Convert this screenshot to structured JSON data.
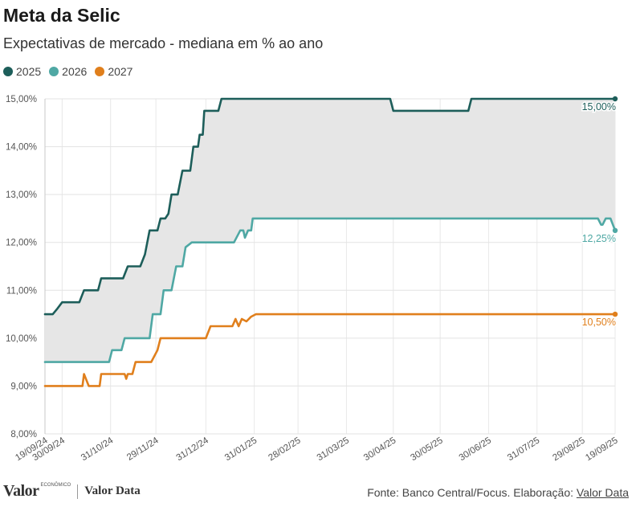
{
  "header": {
    "title": "Meta da Selic",
    "subtitle": "Expectativas de mercado - mediana em % ao ano"
  },
  "footer": {
    "logo_main": "Valor",
    "logo_small": "ECONÔMICO",
    "logo_brand": "Valor Data",
    "source_prefix": "Fonte: Banco Central/Focus. Elaboração: ",
    "source_link": "Valor Data"
  },
  "chart_data": {
    "type": "line",
    "title": "Meta da Selic",
    "subtitle": "Expectativas de mercado - mediana em % ao ano",
    "xlabel": "",
    "ylabel": "",
    "ylim": [
      8.0,
      15.0
    ],
    "yticks": [
      8.0,
      9.0,
      10.0,
      11.0,
      12.0,
      13.0,
      14.0,
      15.0
    ],
    "ytick_labels": [
      "8,00%",
      "9,00%",
      "10,00%",
      "11,00%",
      "12,00%",
      "13,00%",
      "14,00%",
      "15,00%"
    ],
    "xlim": [
      "2024-09-19",
      "2025-09-19"
    ],
    "xticks": [
      "2024-09-19",
      "2024-09-30",
      "2024-10-31",
      "2024-11-29",
      "2024-12-31",
      "2025-01-31",
      "2025-02-28",
      "2025-03-31",
      "2025-04-30",
      "2025-05-30",
      "2025-06-30",
      "2025-07-31",
      "2025-08-29",
      "2025-09-19"
    ],
    "xtick_labels": [
      "19/09/24",
      "30/09/24",
      "31/10/24",
      "29/11/24",
      "31/12/24",
      "31/01/25",
      "28/02/25",
      "31/03/25",
      "30/04/25",
      "30/05/25",
      "30/06/25",
      "31/07/25",
      "29/08/25",
      "19/09/25"
    ],
    "grid": true,
    "legend_position": "top-left",
    "shaded_band": {
      "between": [
        "2025",
        "2026"
      ],
      "color": "#e6e6e6"
    },
    "series": [
      {
        "name": "2025",
        "color": "#1d5e5a",
        "end_label": "15,00%",
        "points": [
          [
            "2024-09-19",
            10.5
          ],
          [
            "2024-09-24",
            10.5
          ],
          [
            "2024-09-27",
            10.62
          ],
          [
            "2024-09-30",
            10.75
          ],
          [
            "2024-10-11",
            10.75
          ],
          [
            "2024-10-14",
            11.0
          ],
          [
            "2024-10-23",
            11.0
          ],
          [
            "2024-10-25",
            11.25
          ],
          [
            "2024-11-08",
            11.25
          ],
          [
            "2024-11-11",
            11.5
          ],
          [
            "2024-11-19",
            11.5
          ],
          [
            "2024-11-22",
            11.75
          ],
          [
            "2024-11-25",
            12.25
          ],
          [
            "2024-11-30",
            12.25
          ],
          [
            "2024-12-02",
            12.5
          ],
          [
            "2024-12-05",
            12.5
          ],
          [
            "2024-12-07",
            12.6
          ],
          [
            "2024-12-09",
            13.0
          ],
          [
            "2024-12-13",
            13.0
          ],
          [
            "2024-12-16",
            13.5
          ],
          [
            "2024-12-21",
            13.5
          ],
          [
            "2024-12-23",
            14.0
          ],
          [
            "2024-12-26",
            14.0
          ],
          [
            "2024-12-27",
            14.25
          ],
          [
            "2024-12-29",
            14.25
          ],
          [
            "2024-12-30",
            14.75
          ],
          [
            "2025-01-08",
            14.75
          ],
          [
            "2025-01-10",
            15.0
          ],
          [
            "2025-04-28",
            15.0
          ],
          [
            "2025-04-30",
            14.75
          ],
          [
            "2025-06-17",
            14.75
          ],
          [
            "2025-06-19",
            15.0
          ],
          [
            "2025-09-19",
            15.0
          ]
        ]
      },
      {
        "name": "2026",
        "color": "#4fa8a4",
        "end_label": "12,25%",
        "points": [
          [
            "2024-09-19",
            9.5
          ],
          [
            "2024-10-30",
            9.5
          ],
          [
            "2024-11-01",
            9.75
          ],
          [
            "2024-11-07",
            9.75
          ],
          [
            "2024-11-09",
            10.0
          ],
          [
            "2024-11-25",
            10.0
          ],
          [
            "2024-11-27",
            10.5
          ],
          [
            "2024-12-02",
            10.5
          ],
          [
            "2024-12-04",
            11.0
          ],
          [
            "2024-12-09",
            11.0
          ],
          [
            "2024-12-12",
            11.5
          ],
          [
            "2024-12-16",
            11.5
          ],
          [
            "2024-12-18",
            11.9
          ],
          [
            "2024-12-20",
            11.95
          ],
          [
            "2024-12-22",
            12.0
          ],
          [
            "2025-01-18",
            12.0
          ],
          [
            "2025-01-22",
            12.25
          ],
          [
            "2025-01-24",
            12.25
          ],
          [
            "2025-01-25",
            12.1
          ],
          [
            "2025-01-27",
            12.25
          ],
          [
            "2025-01-29",
            12.25
          ],
          [
            "2025-01-30",
            12.5
          ],
          [
            "2025-09-08",
            12.5
          ],
          [
            "2025-09-10",
            12.37
          ],
          [
            "2025-09-11",
            12.37
          ],
          [
            "2025-09-13",
            12.5
          ],
          [
            "2025-09-16",
            12.5
          ],
          [
            "2025-09-19",
            12.25
          ]
        ]
      },
      {
        "name": "2027",
        "color": "#e07f1c",
        "end_label": "10,50%",
        "points": [
          [
            "2024-09-19",
            9.0
          ],
          [
            "2024-10-13",
            9.0
          ],
          [
            "2024-10-14",
            9.25
          ],
          [
            "2024-10-17",
            9.0
          ],
          [
            "2024-10-24",
            9.0
          ],
          [
            "2024-10-25",
            9.25
          ],
          [
            "2024-11-09",
            9.25
          ],
          [
            "2024-11-10",
            9.15
          ],
          [
            "2024-11-11",
            9.25
          ],
          [
            "2024-11-14",
            9.25
          ],
          [
            "2024-11-16",
            9.5
          ],
          [
            "2024-11-26",
            9.5
          ],
          [
            "2024-11-30",
            9.75
          ],
          [
            "2024-12-02",
            10.0
          ],
          [
            "2024-12-30",
            10.0
          ],
          [
            "2024-12-31",
            10.0
          ],
          [
            "2025-01-03",
            10.25
          ],
          [
            "2025-01-14",
            10.25
          ],
          [
            "2025-01-17",
            10.25
          ],
          [
            "2025-01-19",
            10.4
          ],
          [
            "2025-01-21",
            10.25
          ],
          [
            "2025-01-23",
            10.4
          ],
          [
            "2025-01-26",
            10.35
          ],
          [
            "2025-01-29",
            10.45
          ],
          [
            "2025-02-01",
            10.5
          ],
          [
            "2025-09-19",
            10.5
          ]
        ]
      }
    ]
  }
}
